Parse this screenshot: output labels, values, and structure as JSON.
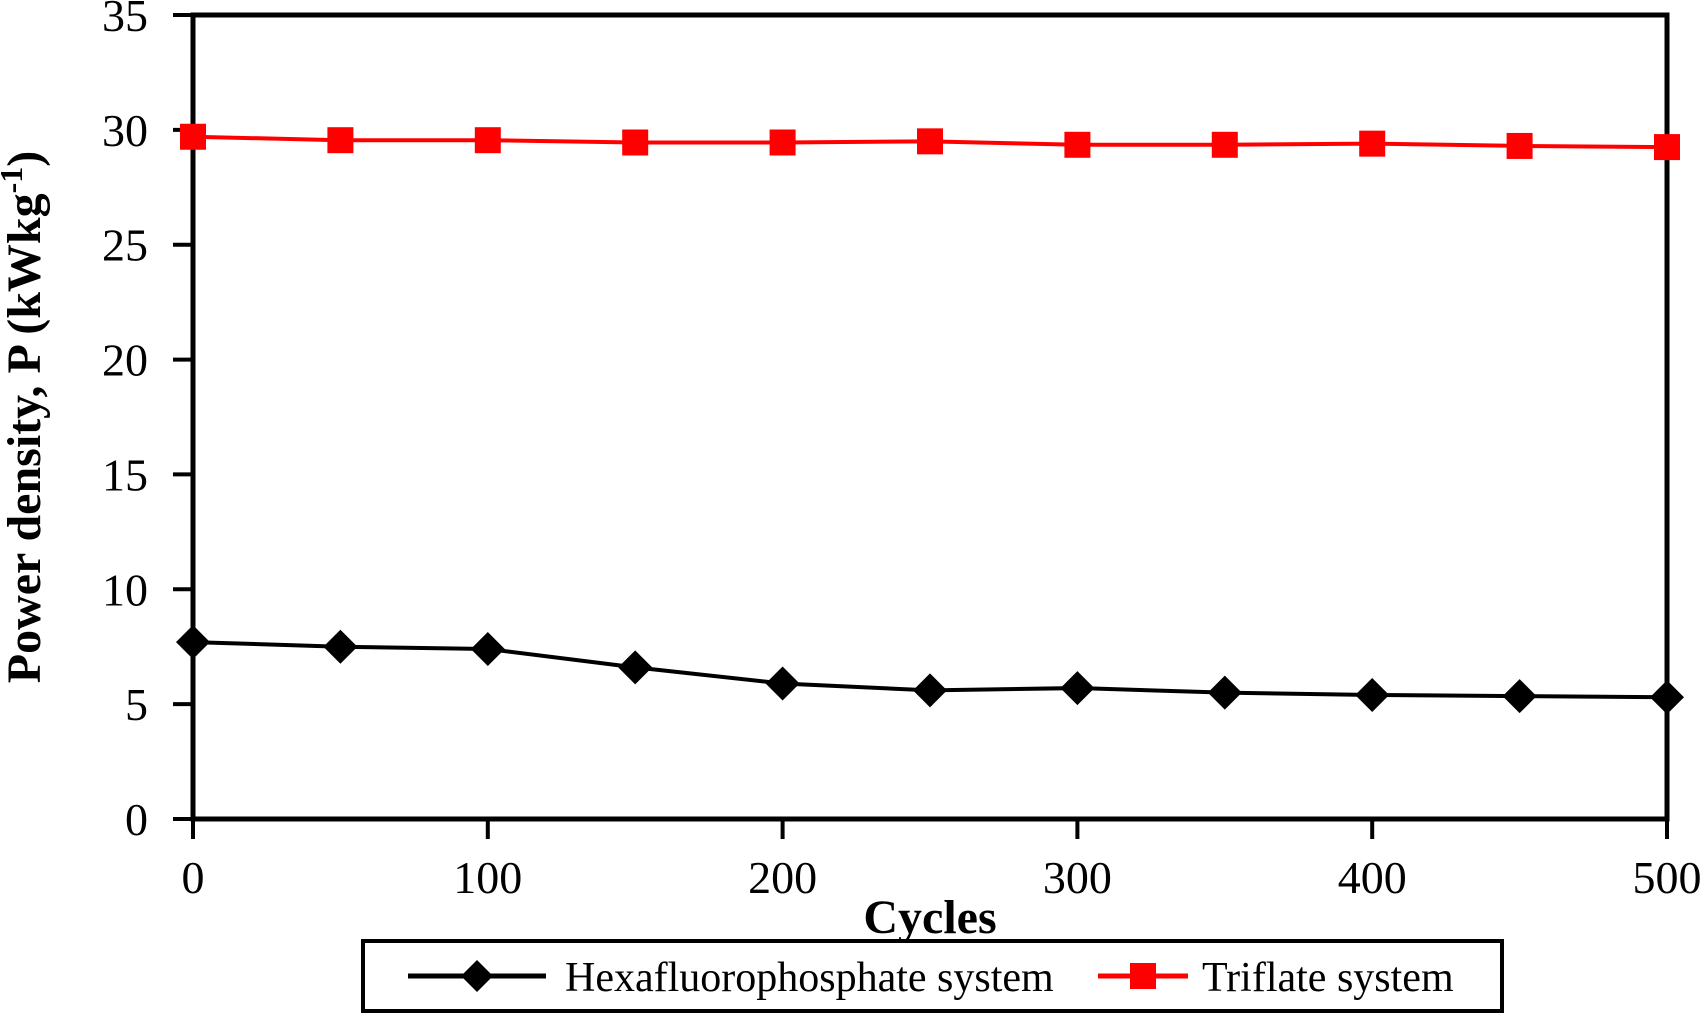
{
  "chart_data": {
    "type": "line",
    "title": "",
    "xlabel": "Cycles",
    "ylabel": {
      "pre": "Power density, P (kWkg",
      "sup": "-1",
      "post": ")"
    },
    "x": [
      0,
      50,
      100,
      150,
      200,
      250,
      300,
      350,
      400,
      450,
      500
    ],
    "series": [
      {
        "name": "Hexafluorophosphate system",
        "color": "#000000",
        "marker": "diamond",
        "values": [
          7.7,
          7.5,
          7.4,
          6.6,
          5.9,
          5.6,
          5.7,
          5.5,
          5.4,
          5.35,
          5.3
        ]
      },
      {
        "name": "Triflate system",
        "color": "#ff0000",
        "marker": "square",
        "values": [
          29.7,
          29.55,
          29.55,
          29.45,
          29.45,
          29.5,
          29.35,
          29.35,
          29.4,
          29.3,
          29.25
        ]
      }
    ],
    "xlim": [
      0,
      500
    ],
    "ylim": [
      0,
      35
    ],
    "xticks": [
      0,
      100,
      200,
      300,
      400,
      500
    ],
    "yticks": [
      0,
      5,
      10,
      15,
      20,
      25,
      30,
      35
    ],
    "grid": false,
    "frame": true,
    "legend_position": "bottom"
  }
}
